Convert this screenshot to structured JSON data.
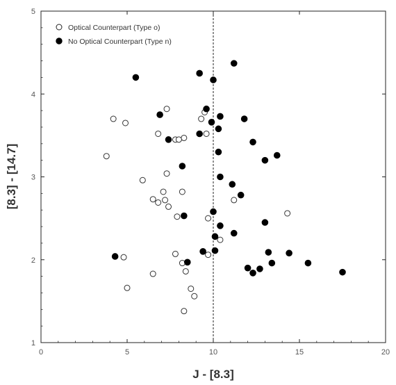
{
  "chart_data": {
    "type": "scatter",
    "xlabel": "J - [8.3]",
    "ylabel": "[8.3] - [14.7]",
    "xlim": [
      0,
      20
    ],
    "ylim": [
      1,
      5
    ],
    "x_ticks": [
      "0",
      "5",
      "10",
      "15",
      "20"
    ],
    "y_ticks": [
      "1",
      "2",
      "3",
      "4",
      "5"
    ],
    "grid": false,
    "legend_position": "top-left",
    "reference_line": {
      "x": 10,
      "style": "dashed"
    },
    "series": [
      {
        "name": "Optical Counterpart (Type o)",
        "marker": "open-circle",
        "points": [
          [
            4.2,
            3.7
          ],
          [
            4.9,
            3.65
          ],
          [
            3.8,
            3.25
          ],
          [
            7.3,
            3.82
          ],
          [
            6.8,
            3.52
          ],
          [
            8.3,
            3.47
          ],
          [
            7.8,
            3.45
          ],
          [
            8.0,
            3.45
          ],
          [
            9.3,
            3.7
          ],
          [
            9.5,
            3.78
          ],
          [
            9.6,
            3.52
          ],
          [
            7.3,
            3.04
          ],
          [
            5.9,
            2.96
          ],
          [
            7.1,
            2.82
          ],
          [
            8.2,
            2.82
          ],
          [
            6.5,
            2.73
          ],
          [
            6.8,
            2.69
          ],
          [
            7.2,
            2.72
          ],
          [
            7.4,
            2.64
          ],
          [
            7.9,
            2.52
          ],
          [
            9.7,
            2.5
          ],
          [
            11.2,
            2.72
          ],
          [
            14.3,
            2.56
          ],
          [
            10.4,
            2.24
          ],
          [
            7.8,
            2.07
          ],
          [
            9.7,
            2.06
          ],
          [
            4.8,
            2.03
          ],
          [
            8.2,
            1.96
          ],
          [
            8.4,
            1.86
          ],
          [
            6.5,
            1.83
          ],
          [
            5.0,
            1.66
          ],
          [
            8.7,
            1.65
          ],
          [
            8.9,
            1.56
          ],
          [
            8.3,
            1.38
          ]
        ]
      },
      {
        "name": "No Optical Counterpart (Type n)",
        "marker": "filled-circle",
        "points": [
          [
            5.5,
            4.2
          ],
          [
            9.2,
            4.25
          ],
          [
            10.0,
            4.17
          ],
          [
            11.2,
            4.37
          ],
          [
            6.9,
            3.75
          ],
          [
            9.6,
            3.82
          ],
          [
            10.4,
            3.73
          ],
          [
            9.9,
            3.66
          ],
          [
            11.8,
            3.7
          ],
          [
            10.3,
            3.58
          ],
          [
            9.2,
            3.52
          ],
          [
            7.4,
            3.45
          ],
          [
            12.3,
            3.42
          ],
          [
            10.3,
            3.3
          ],
          [
            13.7,
            3.26
          ],
          [
            13.0,
            3.2
          ],
          [
            8.2,
            3.13
          ],
          [
            10.4,
            3.0
          ],
          [
            11.1,
            2.91
          ],
          [
            11.6,
            2.78
          ],
          [
            10.0,
            2.58
          ],
          [
            8.3,
            2.53
          ],
          [
            13.0,
            2.45
          ],
          [
            10.4,
            2.41
          ],
          [
            11.2,
            2.32
          ],
          [
            10.1,
            2.28
          ],
          [
            9.4,
            2.1
          ],
          [
            10.1,
            2.11
          ],
          [
            13.2,
            2.09
          ],
          [
            14.4,
            2.08
          ],
          [
            4.3,
            2.04
          ],
          [
            8.5,
            1.97
          ],
          [
            13.4,
            1.96
          ],
          [
            15.5,
            1.96
          ],
          [
            12.0,
            1.9
          ],
          [
            12.7,
            1.89
          ],
          [
            12.3,
            1.84
          ],
          [
            17.5,
            1.85
          ]
        ]
      }
    ]
  }
}
